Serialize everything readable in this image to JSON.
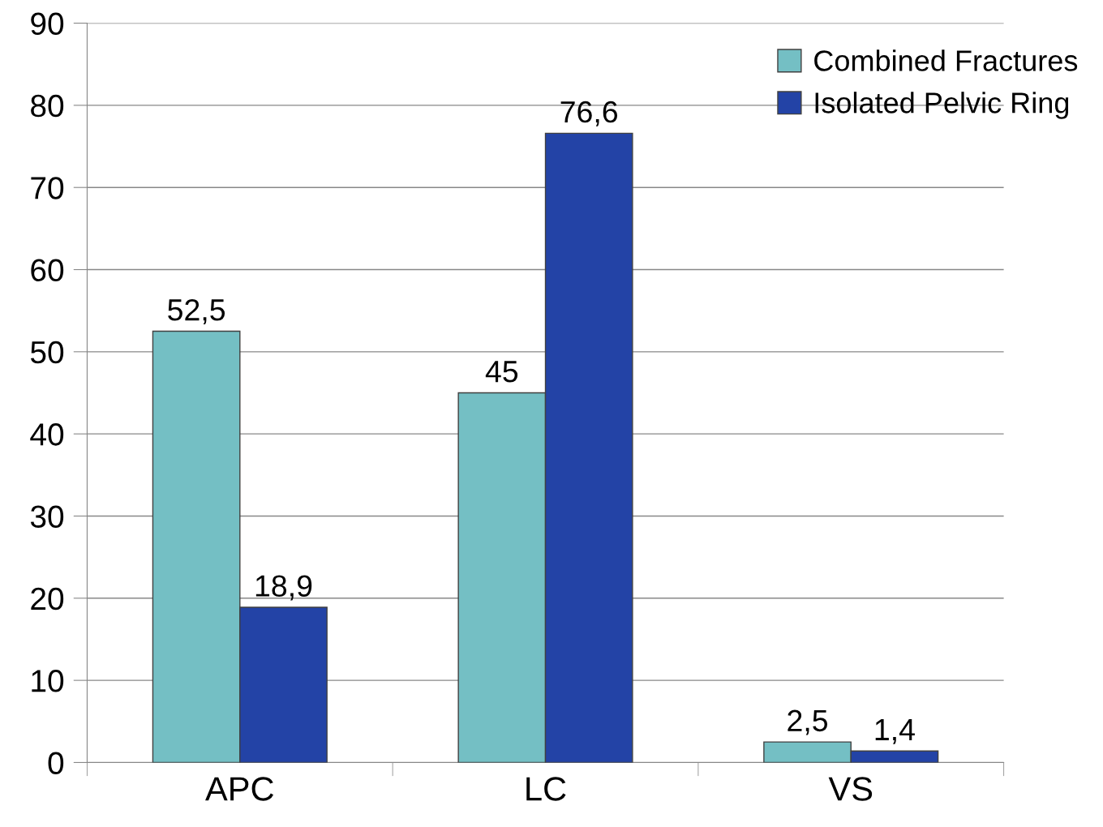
{
  "chart_data": {
    "type": "bar",
    "categories": [
      "APC",
      "LC",
      "VS"
    ],
    "series": [
      {
        "name": "Combined Fractures",
        "color": "#74bfc4",
        "values": [
          52.5,
          45,
          2.5
        ],
        "value_labels": [
          "52,5",
          "45",
          "2,5"
        ]
      },
      {
        "name": "Isolated Pelvic Ring",
        "color": "#2343a6",
        "values": [
          18.9,
          76.6,
          1.4
        ],
        "value_labels": [
          "18,9",
          "76,6",
          "1,4"
        ]
      }
    ],
    "ylim": [
      0,
      90
    ],
    "yticks": [
      0,
      10,
      20,
      30,
      40,
      50,
      60,
      70,
      80,
      90
    ],
    "grid": "y",
    "legend": "top right"
  }
}
